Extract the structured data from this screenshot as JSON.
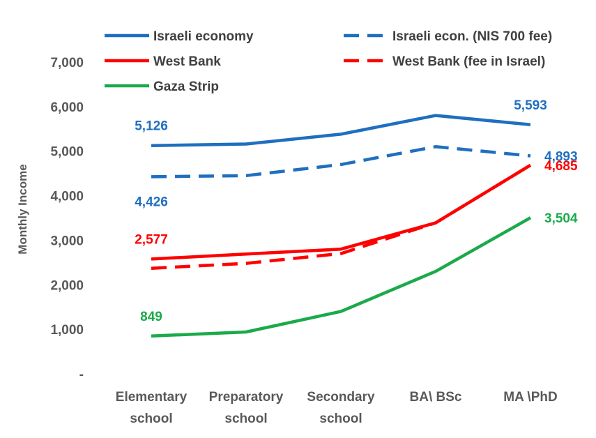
{
  "chart_data": {
    "type": "line",
    "categories": [
      [
        "Elementary",
        "school"
      ],
      [
        "Preparatory",
        "school"
      ],
      [
        "Secondary",
        "school"
      ],
      [
        "BA\\ BSc"
      ],
      [
        "MA \\PhD"
      ]
    ],
    "ylabel": "Monthly Income",
    "ylim": [
      0,
      7000
    ],
    "yticks": [
      0,
      1000,
      2000,
      3000,
      4000,
      5000,
      6000,
      7000
    ],
    "ytick_labels": [
      "-",
      "1,000",
      "2,000",
      "3,000",
      "4,000",
      "5,000",
      "6,000",
      "7,000"
    ],
    "grid": false,
    "legend_placement": "top",
    "series": [
      {
        "name": "Israeli economy",
        "color": "#1F6FBF",
        "dash": false,
        "values": [
          5126,
          5160,
          5380,
          5800,
          5593
        ],
        "labels": [
          {
            "index": 0,
            "text": "5,126",
            "pos": "above"
          },
          {
            "index": 4,
            "text": "5,593",
            "pos": "above"
          }
        ]
      },
      {
        "name": "Israeli econ. (NIS 700 fee)",
        "color": "#1F6FBF",
        "dash": true,
        "values": [
          4426,
          4450,
          4700,
          5100,
          4893
        ],
        "labels": [
          {
            "index": 0,
            "text": "4,426",
            "pos": "below"
          },
          {
            "index": 4,
            "text": "4,893",
            "pos": "right"
          }
        ]
      },
      {
        "name": "West Bank",
        "color": "#FF0000",
        "dash": false,
        "values": [
          2577,
          2690,
          2800,
          3390,
          4685
        ],
        "labels": [
          {
            "index": 0,
            "text": "2,577",
            "pos": "above"
          },
          {
            "index": 4,
            "text": "4,685",
            "pos": "right"
          }
        ]
      },
      {
        "name": "West Bank (fee in Israel)",
        "color": "#FF0000",
        "dash": true,
        "values": [
          2370,
          2480,
          2700,
          3390,
          4685
        ],
        "labels": []
      },
      {
        "name": "Gaza Strip",
        "color": "#1BAA4A",
        "dash": false,
        "values": [
          849,
          940,
          1400,
          2300,
          3504
        ],
        "labels": [
          {
            "index": 0,
            "text": "849",
            "pos": "above"
          },
          {
            "index": 4,
            "text": "3,504",
            "pos": "right"
          }
        ]
      }
    ]
  }
}
